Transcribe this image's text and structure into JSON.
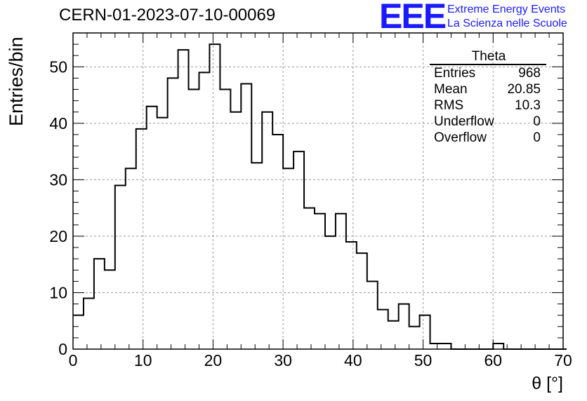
{
  "header": {
    "title": "CERN-01-2023-07-10-00069",
    "logo": "EEE",
    "logo_line1": "Extreme Energy Events",
    "logo_line2": "La Scienza nelle Scuole"
  },
  "stats": {
    "name": "Theta",
    "rows": [
      {
        "label": "Entries",
        "value": "968"
      },
      {
        "label": "Mean",
        "value": "20.85"
      },
      {
        "label": "RMS",
        "value": "10.3"
      },
      {
        "label": "Underflow",
        "value": "0"
      },
      {
        "label": "Overflow",
        "value": "0"
      }
    ]
  },
  "chart_data": {
    "type": "histogram",
    "xlabel": "θ [°]",
    "ylabel": "Entries/bin",
    "xlim": [
      0,
      70
    ],
    "ylim": [
      0,
      56
    ],
    "bin_width": 1.5,
    "bin_start": 0,
    "values": [
      6,
      9,
      16,
      14,
      29,
      32,
      39,
      43,
      41,
      48,
      53,
      46,
      49,
      54,
      46,
      42,
      47,
      33,
      42,
      38,
      32,
      35,
      25,
      24,
      20,
      24,
      19,
      17,
      12,
      7,
      5,
      8,
      4,
      6,
      1,
      1,
      0,
      0,
      0,
      0,
      1,
      0,
      0,
      0,
      0,
      0,
      0
    ],
    "xticks": [
      0,
      10,
      20,
      30,
      40,
      50,
      60,
      70
    ],
    "yticks": [
      0,
      10,
      20,
      30,
      40,
      50
    ],
    "grid": true,
    "line_color": "#000000",
    "grid_color": "#999999"
  },
  "colors": {
    "logo": "#1a1aff"
  }
}
